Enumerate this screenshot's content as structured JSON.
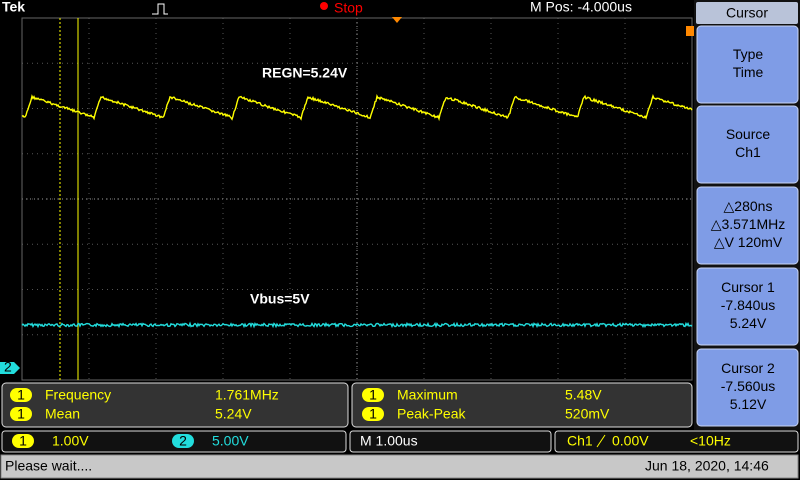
{
  "header": {
    "brand": "Tek",
    "state": "Stop",
    "position": "M Pos: -4.000us"
  },
  "annotations": [
    "REGN=5.24V",
    "Vbus=5V"
  ],
  "markers": {
    "channel2": "2"
  },
  "menu": {
    "title": "Cursor",
    "buttons": [
      {
        "lines": [
          "Type",
          "Time"
        ]
      },
      {
        "lines": [
          "Source",
          "Ch1"
        ]
      },
      {
        "lines": [
          "△280ns",
          "△3.571MHz",
          "△V 120mV"
        ]
      },
      {
        "lines": [
          "Cursor 1",
          "-7.840us",
          "5.24V"
        ]
      },
      {
        "lines": [
          "Cursor 2",
          "-7.560us",
          "5.12V"
        ]
      }
    ]
  },
  "measurements": [
    {
      "channel": "1",
      "label": "Frequency",
      "value": "1.761MHz"
    },
    {
      "channel": "1",
      "label": "Mean",
      "value": "5.24V"
    },
    {
      "channel": "1",
      "label": "Maximum",
      "value": "5.48V"
    },
    {
      "channel": "1",
      "label": "Peak-Peak",
      "value": "520mV"
    }
  ],
  "channels": [
    {
      "id": "1",
      "scale": "1.00V"
    },
    {
      "id": "2",
      "scale": "5.00V"
    }
  ],
  "timebase": "M 1.00us",
  "trigger": {
    "source": "Ch1",
    "level": "0.00V",
    "frequency": "<10Hz"
  },
  "status": {
    "message": "Please wait....",
    "datetime": "Jun 18, 2020, 14:46"
  }
}
